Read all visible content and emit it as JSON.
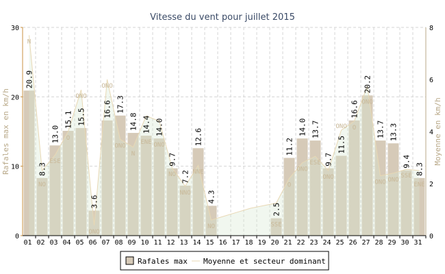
{
  "chart_data": {
    "type": "bar",
    "title": "Vitesse du vent pour juillet 2015",
    "ylabel": "Rafales max en km/h",
    "y2label": "Moyenne en km/h",
    "ylim": [
      0,
      30
    ],
    "y2lim": [
      0,
      8
    ],
    "yticks": [
      "0",
      "10",
      "20",
      "30"
    ],
    "y2ticks": [
      "0",
      "2",
      "4",
      "6",
      "8"
    ],
    "categories": [
      "01",
      "02",
      "03",
      "04",
      "05",
      "06",
      "07",
      "08",
      "09",
      "10",
      "11",
      "12",
      "13",
      "14",
      "15",
      "16",
      "17",
      "18",
      "19",
      "20",
      "21",
      "22",
      "23",
      "24",
      "25",
      "26",
      "27",
      "28",
      "29",
      "30",
      "31"
    ],
    "series": [
      {
        "name": "Rafales max",
        "type": "bar",
        "color": "#d6cab8",
        "values": [
          20.9,
          8.3,
          13.0,
          15.1,
          15.5,
          3.6,
          16.6,
          17.3,
          14.8,
          14.4,
          14.0,
          9.7,
          7.2,
          12.6,
          4.3,
          null,
          null,
          null,
          null,
          2.5,
          11.2,
          14.0,
          13.7,
          9.7,
          11.5,
          16.6,
          20.2,
          13.7,
          13.3,
          9.4,
          8.3
        ],
        "labels": [
          "20.9",
          "8.3",
          "13.0",
          "15.1",
          "15.5",
          "3.6",
          "16.6",
          "17.3",
          "14.8",
          "14.4",
          "14.0",
          "9.7",
          "7.2",
          "12.6",
          "4.3",
          "",
          "",
          "",
          "",
          "2.5",
          "11.2",
          "14.0",
          "13.7",
          "9.7",
          "11.5",
          "16.6",
          "20.2",
          "13.7",
          "13.3",
          "9.4",
          "8.3"
        ]
      },
      {
        "name": "Moyenne et secteur dominant",
        "type": "area",
        "axis": "right",
        "color": "#e8d8b4",
        "values": [
          7.7,
          2.5,
          3.1,
          4.0,
          5.6,
          0.4,
          6.0,
          3.7,
          3.4,
          4.6,
          4.4,
          2.6,
          1.9,
          2.7,
          0.6,
          0.75,
          0.9,
          1.05,
          1.15,
          1.25,
          2.2,
          2.8,
          3.05,
          2.5,
          4.05,
          4.4,
          5.75,
          2.3,
          2.4,
          2.55,
          2.5
        ],
        "sectors": [
          "N",
          "NO",
          "ESE",
          "O",
          "ONO",
          "ONO",
          "ONO",
          "ONO",
          "N",
          "ENE",
          "ONO",
          "NO",
          "NNO",
          "NNE",
          "NO",
          "",
          "",
          "",
          "",
          "SSE",
          "O",
          "ONO",
          "ESE",
          "ONO",
          "ONO",
          "O",
          "ONO",
          "ONO",
          "ONO",
          "SSE",
          "ENE"
        ]
      }
    ],
    "grid": true,
    "legend": "bottom-center"
  }
}
